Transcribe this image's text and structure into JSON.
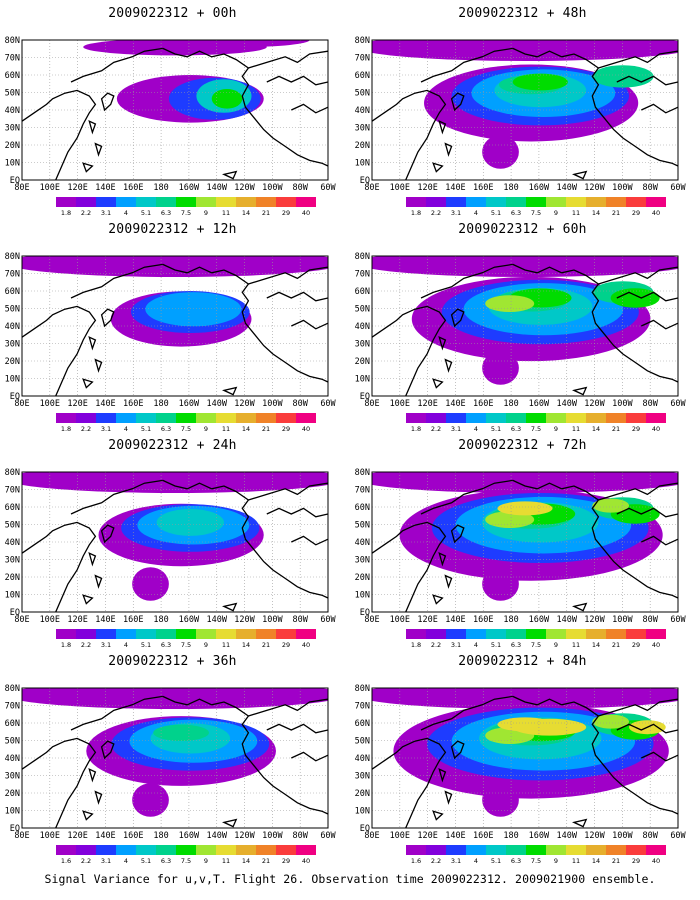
{
  "figure": {
    "caption": "Signal Variance for u,v,T. Flight 26. Observation time 2009022312. 2009021900 ensemble."
  },
  "axes": {
    "lon_ticks": [
      "80E",
      "100E",
      "120E",
      "140E",
      "160E",
      "180",
      "160W",
      "140W",
      "120W",
      "100W",
      "80W",
      "60W"
    ],
    "lat_ticks": [
      "EQ",
      "10N",
      "20N",
      "30N",
      "40N",
      "50N",
      "60N",
      "70N",
      "80N"
    ],
    "lon_range": [
      "80E",
      "60W"
    ],
    "lat_range": [
      "EQ",
      "80N"
    ],
    "grid": "dotted"
  },
  "colorbar": {
    "labels": [
      "1.8",
      "2.2",
      "3.1",
      "4",
      "5.1",
      "6.3",
      "7.5",
      "9",
      "11",
      "14",
      "21",
      "29",
      "40"
    ],
    "labels_bottom_row": [
      "1.6",
      "2.2",
      "3.1",
      "4",
      "5.1",
      "6.3",
      "7.5",
      "9",
      "11",
      "14",
      "21",
      "29",
      "40"
    ],
    "colors": [
      "#a000c8",
      "#8200dc",
      "#1e3cff",
      "#00a0ff",
      "#00c8c8",
      "#00d28c",
      "#00dc00",
      "#a0e632",
      "#e6dc32",
      "#e6af2d",
      "#f08228",
      "#fa3c3c",
      "#f00082"
    ]
  },
  "panels": [
    {
      "title": "2009022312 + 00h",
      "level": 0
    },
    {
      "title": "2009022312 + 48h",
      "level": 4
    },
    {
      "title": "2009022312 + 12h",
      "level": 1
    },
    {
      "title": "2009022312 + 60h",
      "level": 5
    },
    {
      "title": "2009022312 + 24h",
      "level": 2
    },
    {
      "title": "2009022312 + 72h",
      "level": 6
    },
    {
      "title": "2009022312 + 36h",
      "level": 3
    },
    {
      "title": "2009022312 + 84h",
      "level": 7
    }
  ]
}
